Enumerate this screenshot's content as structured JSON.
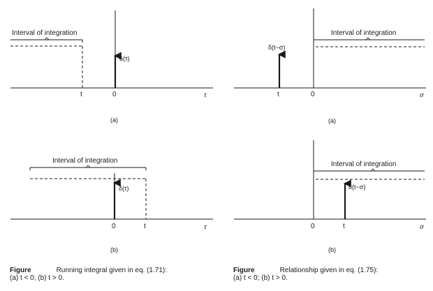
{
  "panels": {
    "top_left": {
      "interval_label": "Interval of integration",
      "delta_label": "δ(τ)",
      "t_label": "t",
      "zero_label": "0",
      "axis_label": "τ",
      "sub_label": "(a)"
    },
    "top_right": {
      "interval_label": "Interval of integration",
      "delta_label": "δ(t−σ)",
      "t_label": "t",
      "zero_label": "0",
      "axis_label": "σ",
      "sub_label": "(a)"
    },
    "bottom_left": {
      "interval_label": "Interval of integration",
      "delta_label": "δ(τ)",
      "t_label": "t",
      "zero_label": "0",
      "axis_label": "τ",
      "sub_label": "(b)"
    },
    "bottom_right": {
      "interval_label": "Interval of integration",
      "delta_label": "δ(t−σ)",
      "t_label": "t",
      "zero_label": "0",
      "axis_label": "σ",
      "sub_label": "(b)"
    }
  },
  "captions": {
    "left": {
      "figure_word": "Figure",
      "text": "Running integral given in eq. (1.71):",
      "line2": "(a) t < 0; (b) t > 0."
    },
    "right": {
      "figure_word": "Figure",
      "text": "Relationship given in eq. (1.75):",
      "line2": "(a) t < 0; (b) t > 0."
    }
  }
}
